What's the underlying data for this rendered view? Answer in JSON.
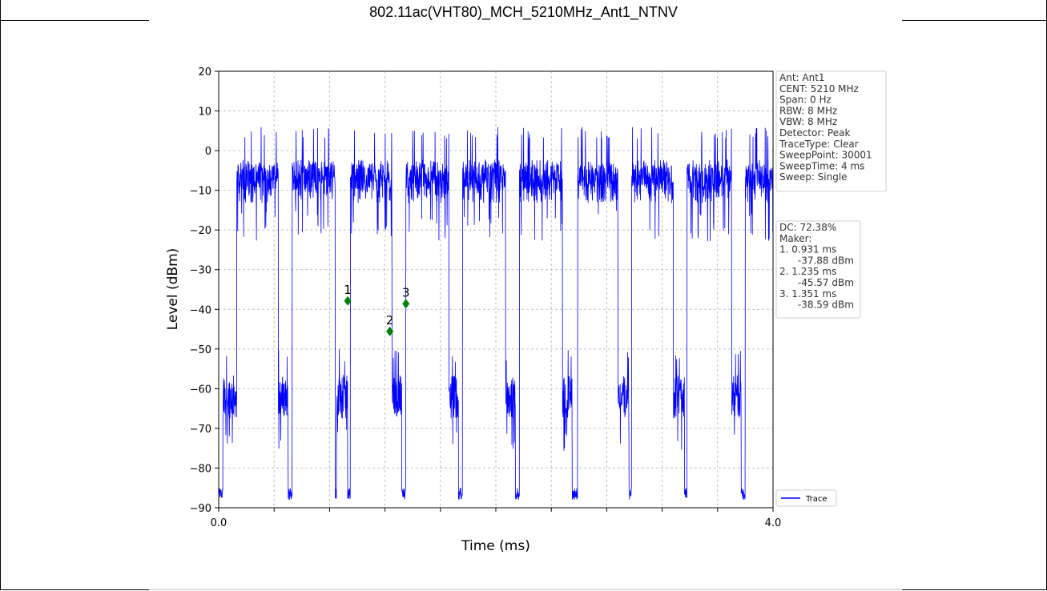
{
  "page_title": "802.11ac(VHT80)_MCH_5210MHz_Ant1_NTNV",
  "chart_data": {
    "type": "line",
    "title": "",
    "xlabel": "Time (ms)",
    "ylabel": "Level (dBm)",
    "xlim": [
      0.0,
      4.0
    ],
    "ylim": [
      -90,
      20
    ],
    "x_tick_labels": [
      "0.0",
      "4.0"
    ],
    "x_minor_ticks": [
      0.0,
      0.4,
      0.8,
      1.2,
      1.6,
      2.0,
      2.4,
      2.8,
      3.2,
      3.6,
      4.0
    ],
    "y_ticks": [
      20,
      10,
      0,
      -10,
      -20,
      -30,
      -40,
      -50,
      -60,
      -70,
      -80,
      -90
    ],
    "grid": true,
    "series": [
      {
        "name": "Trace",
        "color": "#0000ff",
        "on_level_dbm": -5,
        "off_level_dbm": -62,
        "on_intervals_ms": [
          [
            0.13,
            0.43
          ],
          [
            0.53,
            0.84
          ],
          [
            0.95,
            1.25
          ],
          [
            1.35,
            1.66
          ],
          [
            1.76,
            2.07
          ],
          [
            2.17,
            2.48
          ],
          [
            2.59,
            2.88
          ],
          [
            2.98,
            3.28
          ],
          [
            3.38,
            3.7
          ],
          [
            3.8,
            4.0
          ]
        ],
        "off_bursts_ms": [
          [
            0.03,
            0.13
          ],
          [
            0.43,
            0.5
          ],
          [
            0.85,
            0.93
          ],
          [
            1.25,
            1.32
          ],
          [
            1.66,
            1.73
          ],
          [
            2.07,
            2.14
          ],
          [
            2.48,
            2.55
          ],
          [
            2.88,
            2.96
          ],
          [
            3.28,
            3.36
          ],
          [
            3.7,
            3.77
          ]
        ]
      }
    ],
    "markers": [
      {
        "label": "1",
        "x": 0.931,
        "y": -37.88
      },
      {
        "label": "2",
        "x": 1.235,
        "y": -45.57
      },
      {
        "label": "3",
        "x": 1.351,
        "y": -38.59
      }
    ],
    "marker_color": "#008000",
    "info_box": [
      "Ant: Ant1",
      "CENT: 5210 MHz",
      "Span: 0 Hz",
      "RBW: 8 MHz",
      "VBW: 8 MHz",
      "Detector: Peak",
      "TraceType: Clear",
      "SweepPoint: 30001",
      "SweepTime: 4 ms",
      "Sweep: Single"
    ],
    "marker_box": [
      "DC: 72.38%",
      "Maker:",
      "1. 0.931 ms",
      "   -37.88 dBm",
      "2. 1.235 ms",
      "   -45.57 dBm",
      "3. 1.351 ms",
      "   -38.59 dBm"
    ],
    "legend": {
      "label": "Trace",
      "placement": "lower-right-outside"
    }
  }
}
